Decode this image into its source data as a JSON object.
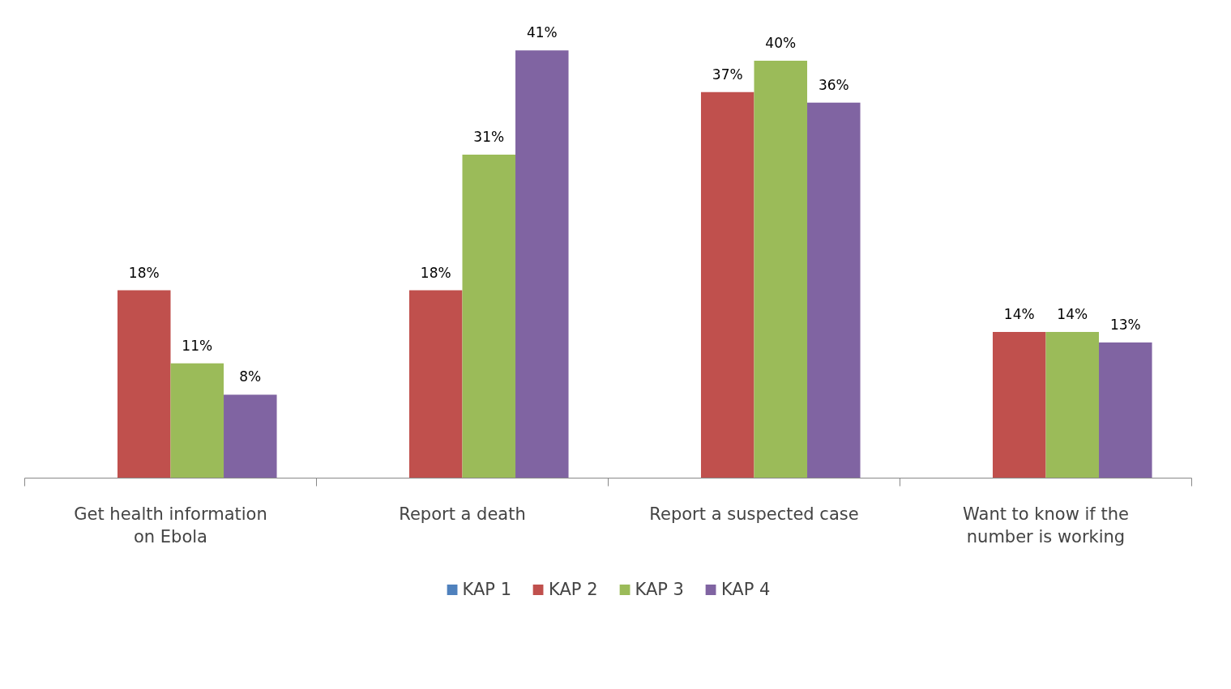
{
  "chart_data": {
    "type": "bar",
    "categories": [
      "Get health information on Ebola",
      "Report a death",
      "Report a suspected case",
      "Want to know if the number is working"
    ],
    "series": [
      {
        "name": "KAP 1",
        "color": "#4f81bd",
        "values": [
          null,
          null,
          null,
          null
        ]
      },
      {
        "name": "KAP 2",
        "color": "#c0504d",
        "values": [
          18,
          18,
          37,
          14
        ],
        "value_labels": [
          "18%",
          "18%",
          "37%",
          "14%"
        ]
      },
      {
        "name": "KAP 3",
        "color": "#9bbb59",
        "values": [
          11,
          31,
          40,
          14
        ],
        "value_labels": [
          "11%",
          "31%",
          "40%",
          "14%"
        ]
      },
      {
        "name": "KAP 4",
        "color": "#8064a2",
        "values": [
          8,
          41,
          36,
          13
        ],
        "value_labels": [
          "8%",
          "41%",
          "36%",
          "13%"
        ]
      }
    ],
    "tick_labels": "x",
    "grid": false,
    "legend": "bottom"
  }
}
